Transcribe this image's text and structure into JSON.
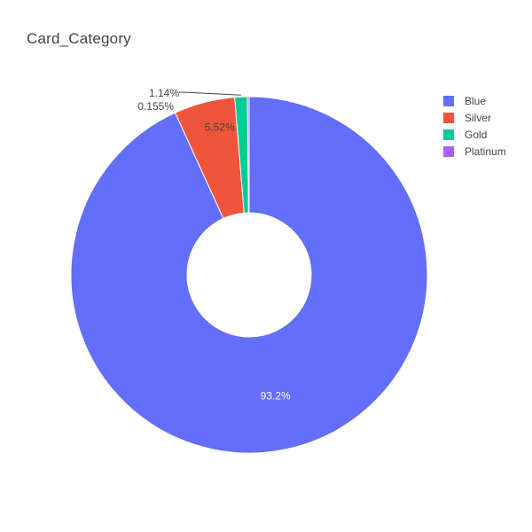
{
  "chart_data": {
    "type": "pie",
    "hole": true,
    "title": "Card_Category",
    "legend_position": "top-right",
    "slices": [
      {
        "label": "Blue",
        "value": 93.2,
        "text": "93.2%",
        "color": "#636efa",
        "text_color": "#ffffff"
      },
      {
        "label": "Silver",
        "value": 5.52,
        "text": "5.52%",
        "color": "#ef553b",
        "text_color": "#444444"
      },
      {
        "label": "Gold",
        "value": 1.14,
        "text": "1.14%",
        "color": "#00cc96",
        "text_color": "#444444"
      },
      {
        "label": "Platinum",
        "value": 0.155,
        "text": "0.155%",
        "color": "#ab63fa",
        "text_color": "#444444"
      }
    ]
  }
}
